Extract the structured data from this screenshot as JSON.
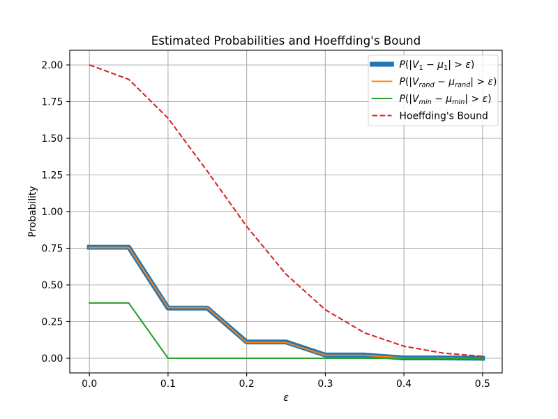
{
  "chart_data": {
    "type": "line",
    "title": "Estimated Probabilities and Hoeffding's Bound",
    "xlabel": "ε",
    "ylabel": "Probability",
    "xlim": [
      -0.025,
      0.525
    ],
    "ylim": [
      -0.1,
      2.1
    ],
    "xticks": [
      0.0,
      0.1,
      0.2,
      0.3,
      0.4,
      0.5
    ],
    "xtick_labels": [
      "0.0",
      "0.1",
      "0.2",
      "0.3",
      "0.4",
      "0.5"
    ],
    "yticks": [
      0.0,
      0.25,
      0.5,
      0.75,
      1.0,
      1.25,
      1.5,
      1.75,
      2.0
    ],
    "ytick_labels": [
      "0.00",
      "0.25",
      "0.50",
      "0.75",
      "1.00",
      "1.25",
      "1.50",
      "1.75",
      "2.00"
    ],
    "grid": true,
    "legend_position": "upper right",
    "x": [
      0.0,
      0.05,
      0.1,
      0.15,
      0.2,
      0.25,
      0.3,
      0.35,
      0.4,
      0.45,
      0.5
    ],
    "series": [
      {
        "name": "P(|V1 − μ1| > ε)",
        "color": "#1f77b4",
        "linestyle": "solid",
        "values": [
          0.757,
          0.757,
          0.342,
          0.342,
          0.111,
          0.111,
          0.022,
          0.022,
          0.002,
          0.002,
          0.0
        ]
      },
      {
        "name": "P(|Vrand − μrand| > ε)",
        "color": "#ff7f0e",
        "linestyle": "solid",
        "values": [
          0.755,
          0.755,
          0.345,
          0.345,
          0.108,
          0.108,
          0.02,
          0.02,
          0.002,
          0.002,
          0.0
        ]
      },
      {
        "name": "P(|Vmin − μmin| > ε)",
        "color": "#2ca02c",
        "linestyle": "solid",
        "values": [
          0.377,
          0.377,
          0.0,
          0.0,
          0.0,
          0.0,
          0.0,
          0.0,
          0.0,
          0.0,
          0.0
        ]
      },
      {
        "name": "Hoeffding's Bound",
        "color": "#d62728",
        "linestyle": "dashed",
        "values": [
          2.0,
          1.902,
          1.637,
          1.275,
          0.899,
          0.573,
          0.331,
          0.173,
          0.082,
          0.035,
          0.013
        ]
      }
    ]
  }
}
